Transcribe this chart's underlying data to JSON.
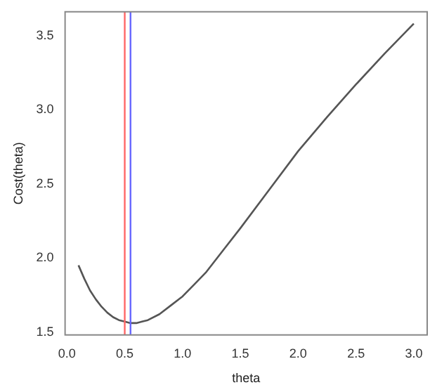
{
  "chart_data": {
    "type": "line",
    "xlabel": "theta",
    "ylabel": "Cost(theta)",
    "x": [
      0.1,
      0.15,
      0.2,
      0.25,
      0.3,
      0.35,
      0.4,
      0.45,
      0.5,
      0.55,
      0.6,
      0.65,
      0.7,
      0.8,
      0.9,
      1.0,
      1.1,
      1.2,
      1.35,
      1.5,
      1.75,
      2.0,
      2.25,
      2.5,
      2.75,
      3.0
    ],
    "series": [
      {
        "color": "#555555",
        "values": [
          1.95,
          1.86,
          1.78,
          1.72,
          1.67,
          1.63,
          1.6,
          1.58,
          1.57,
          1.56,
          1.56,
          1.57,
          1.58,
          1.62,
          1.68,
          1.74,
          1.82,
          1.9,
          2.05,
          2.2,
          2.46,
          2.72,
          2.95,
          3.17,
          3.38,
          3.58
        ]
      }
    ],
    "xlim": [
      -0.016,
      3.116
    ],
    "xticks": [
      {
        "value": 0,
        "label": "0.0"
      },
      0.5,
      {
        "value": 1,
        "label": "1.0"
      },
      1.5,
      {
        "value": 2,
        "label": "2.0"
      },
      2.5,
      {
        "value": 3,
        "label": "3.0"
      }
    ],
    "ylim": [
      1.48,
      3.66
    ],
    "yticks": [
      1.5,
      {
        "value": 2,
        "label": "2.0"
      },
      2.5,
      {
        "value": 3,
        "label": "3.0"
      },
      3.5
    ],
    "ref_lines": [
      {
        "axis": "x",
        "value": 0.5,
        "color": "#ff6666"
      },
      {
        "axis": "x",
        "value": 0.55,
        "color": "#6666ff"
      }
    ],
    "grid": false,
    "legend": false,
    "marker": "none",
    "line_style": "solid"
  }
}
